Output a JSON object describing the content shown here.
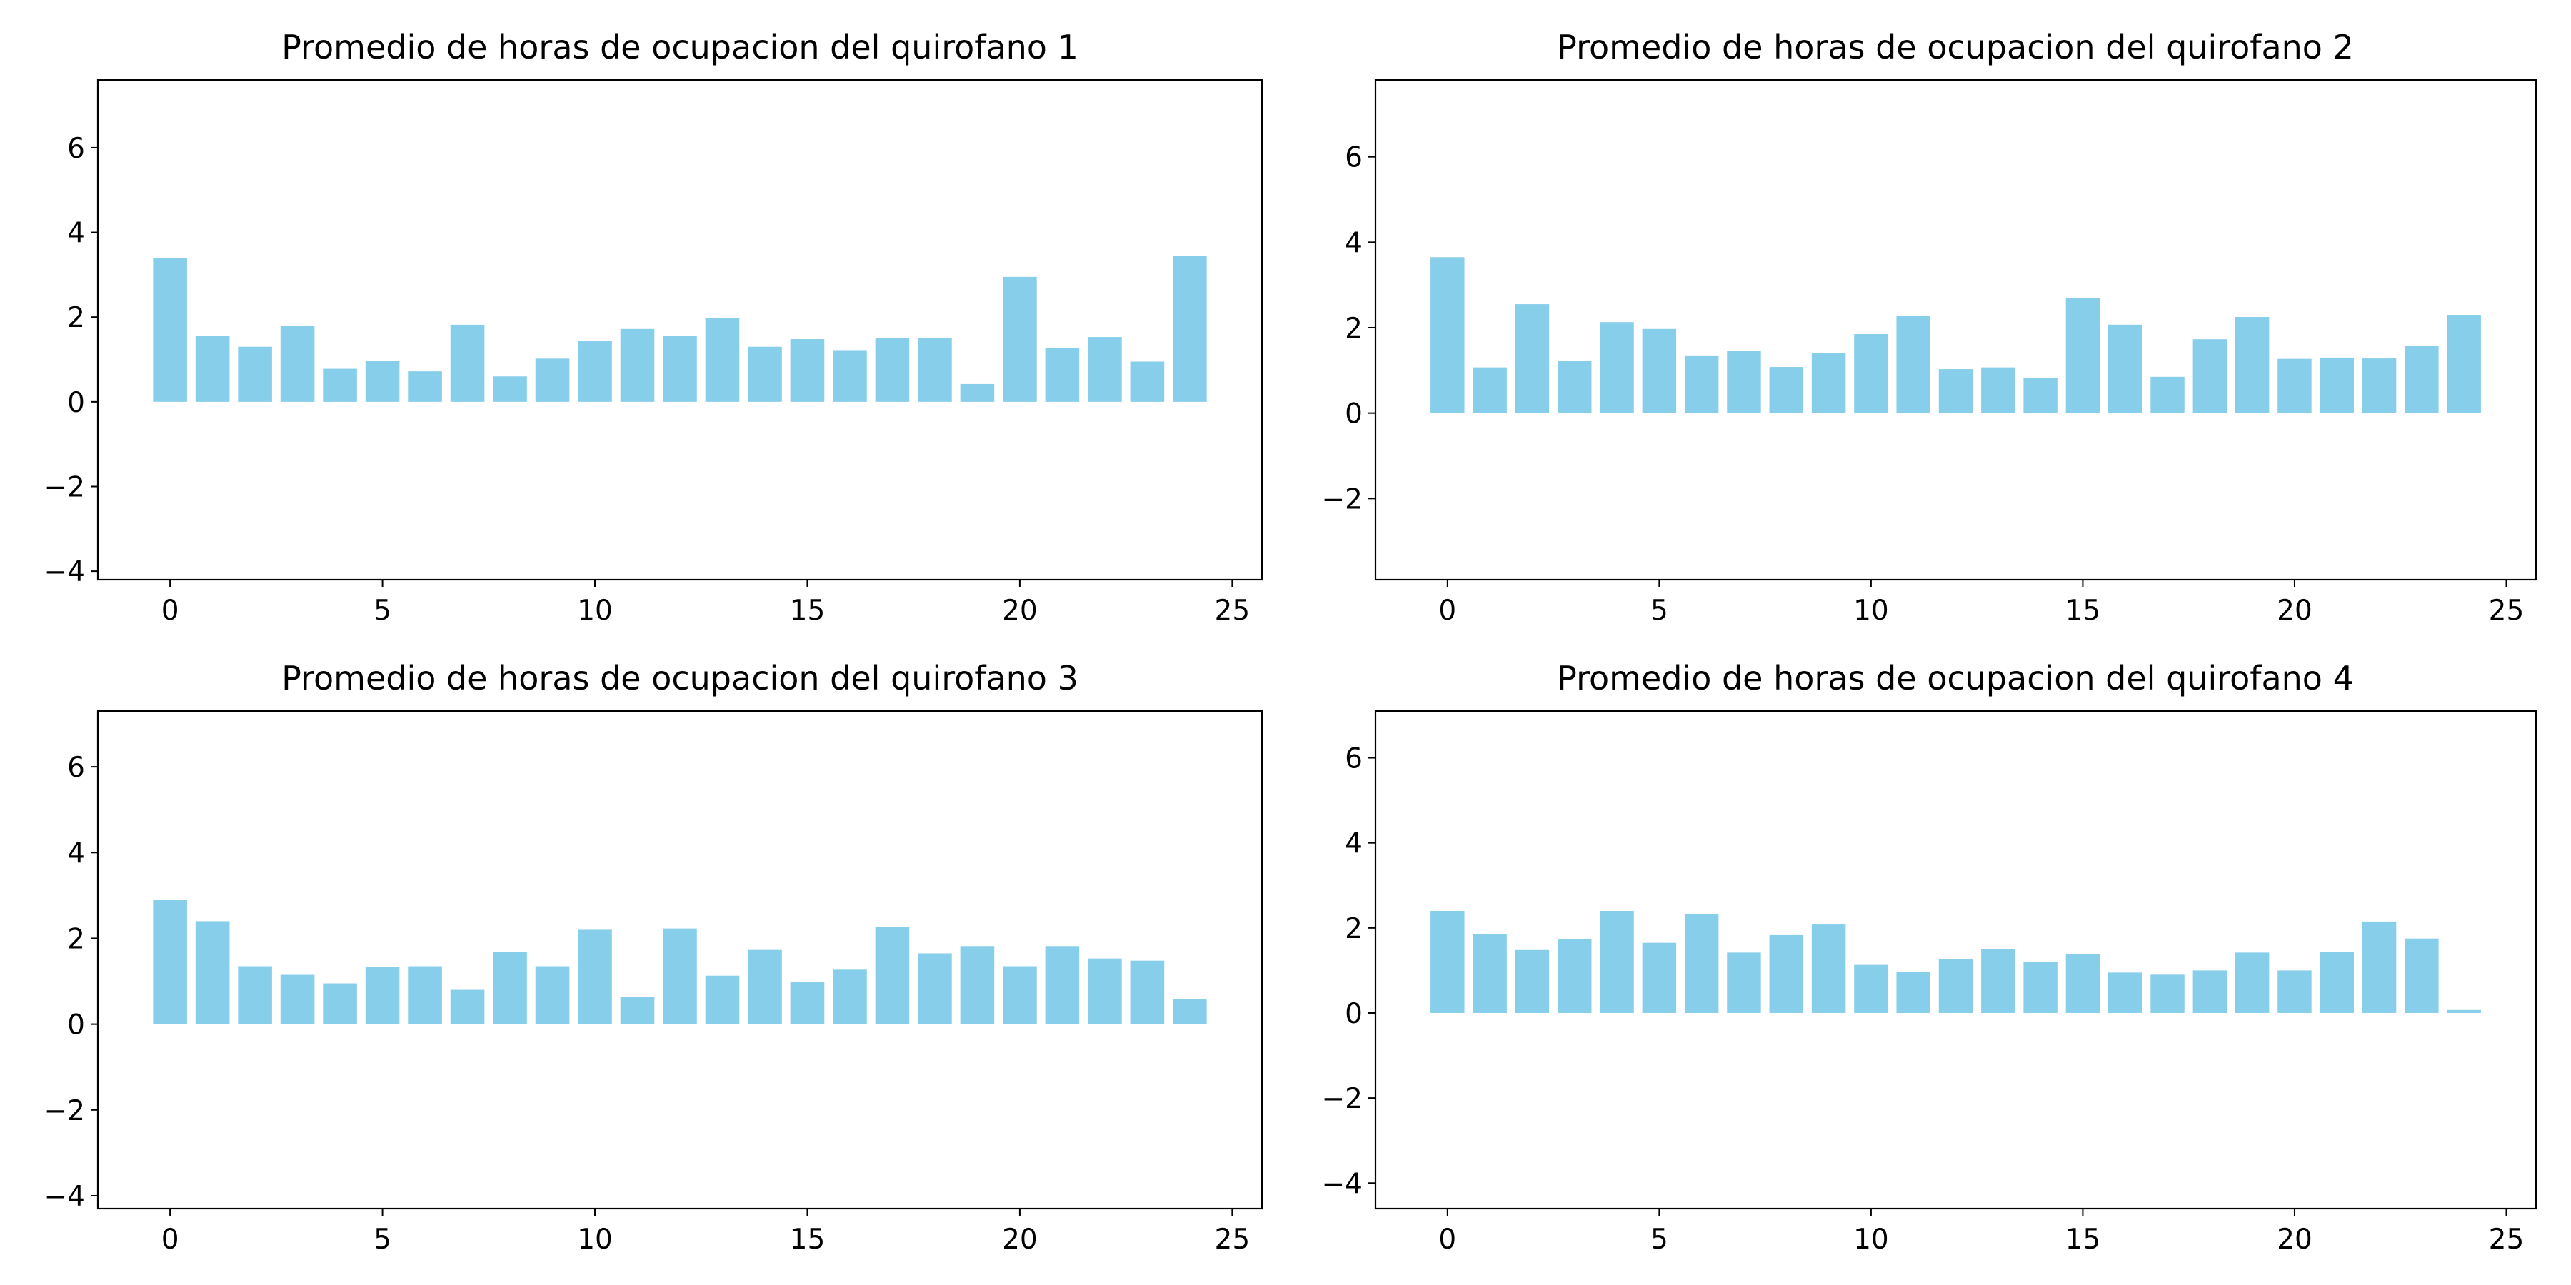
{
  "bar_color": "#87ceeb",
  "chart_data": [
    {
      "type": "bar",
      "title": "Promedio de horas de ocupacion del quirofano 1",
      "xlabel": "",
      "ylabel": "",
      "x": [
        0,
        1,
        2,
        3,
        4,
        5,
        6,
        7,
        8,
        9,
        10,
        11,
        12,
        13,
        14,
        15,
        16,
        17,
        18,
        19,
        20,
        21,
        22,
        23,
        24
      ],
      "values": [
        3.4,
        1.55,
        1.3,
        1.8,
        0.78,
        0.97,
        0.72,
        1.82,
        0.6,
        1.02,
        1.43,
        1.72,
        1.55,
        1.97,
        1.3,
        1.48,
        1.22,
        1.5,
        1.5,
        0.42,
        2.95,
        1.27,
        1.53,
        0.95,
        3.45
      ],
      "xlim": [
        -1.7,
        25.7
      ],
      "ylim": [
        -4.2,
        7.6
      ],
      "xticks": [
        0,
        5,
        10,
        15,
        20,
        25
      ],
      "yticks": [
        -4,
        -2,
        0,
        2,
        4,
        6
      ],
      "grid": false,
      "legend": "none"
    },
    {
      "type": "bar",
      "title": "Promedio de horas de ocupacion del quirofano 2",
      "xlabel": "",
      "ylabel": "",
      "x": [
        0,
        1,
        2,
        3,
        4,
        5,
        6,
        7,
        8,
        9,
        10,
        11,
        12,
        13,
        14,
        15,
        16,
        17,
        18,
        19,
        20,
        21,
        22,
        23,
        24
      ],
      "values": [
        3.65,
        1.07,
        2.55,
        1.23,
        2.13,
        1.97,
        1.35,
        1.45,
        1.08,
        1.4,
        1.85,
        2.27,
        1.03,
        1.07,
        0.82,
        2.7,
        2.07,
        0.85,
        1.73,
        2.25,
        1.27,
        1.3,
        1.28,
        1.57,
        2.3
      ],
      "xlim": [
        -1.7,
        25.7
      ],
      "ylim": [
        -3.9,
        7.8
      ],
      "xticks": [
        0,
        5,
        10,
        15,
        20,
        25
      ],
      "yticks": [
        -2,
        0,
        2,
        4,
        6
      ],
      "grid": false,
      "legend": "none"
    },
    {
      "type": "bar",
      "title": "Promedio de horas de ocupacion del quirofano 3",
      "xlabel": "",
      "ylabel": "",
      "x": [
        0,
        1,
        2,
        3,
        4,
        5,
        6,
        7,
        8,
        9,
        10,
        11,
        12,
        13,
        14,
        15,
        16,
        17,
        18,
        19,
        20,
        21,
        22,
        23,
        24
      ],
      "values": [
        2.9,
        2.4,
        1.35,
        1.15,
        0.95,
        1.33,
        1.35,
        0.8,
        1.68,
        1.35,
        2.2,
        0.63,
        2.23,
        1.13,
        1.73,
        0.98,
        1.27,
        2.27,
        1.65,
        1.82,
        1.35,
        1.82,
        1.53,
        1.48,
        0.58
      ],
      "xlim": [
        -1.7,
        25.7
      ],
      "ylim": [
        -4.3,
        7.3
      ],
      "xticks": [
        0,
        5,
        10,
        15,
        20,
        25
      ],
      "yticks": [
        -4,
        -2,
        0,
        2,
        4,
        6
      ],
      "grid": false,
      "legend": "none"
    },
    {
      "type": "bar",
      "title": "Promedio de horas de ocupacion del quirofano 4",
      "xlabel": "",
      "ylabel": "",
      "x": [
        0,
        1,
        2,
        3,
        4,
        5,
        6,
        7,
        8,
        9,
        10,
        11,
        12,
        13,
        14,
        15,
        16,
        17,
        18,
        19,
        20,
        21,
        22,
        23,
        24
      ],
      "values": [
        2.4,
        1.85,
        1.48,
        1.73,
        2.4,
        1.65,
        2.32,
        1.42,
        1.83,
        2.08,
        1.13,
        0.97,
        1.27,
        1.5,
        1.2,
        1.38,
        0.95,
        0.9,
        1.0,
        1.42,
        1.0,
        1.43,
        2.15,
        1.75,
        0.07
      ],
      "xlim": [
        -1.7,
        25.7
      ],
      "ylim": [
        -4.6,
        7.1
      ],
      "xticks": [
        0,
        5,
        10,
        15,
        20,
        25
      ],
      "yticks": [
        -4,
        -2,
        0,
        2,
        4,
        6
      ],
      "grid": false,
      "legend": "none"
    }
  ]
}
